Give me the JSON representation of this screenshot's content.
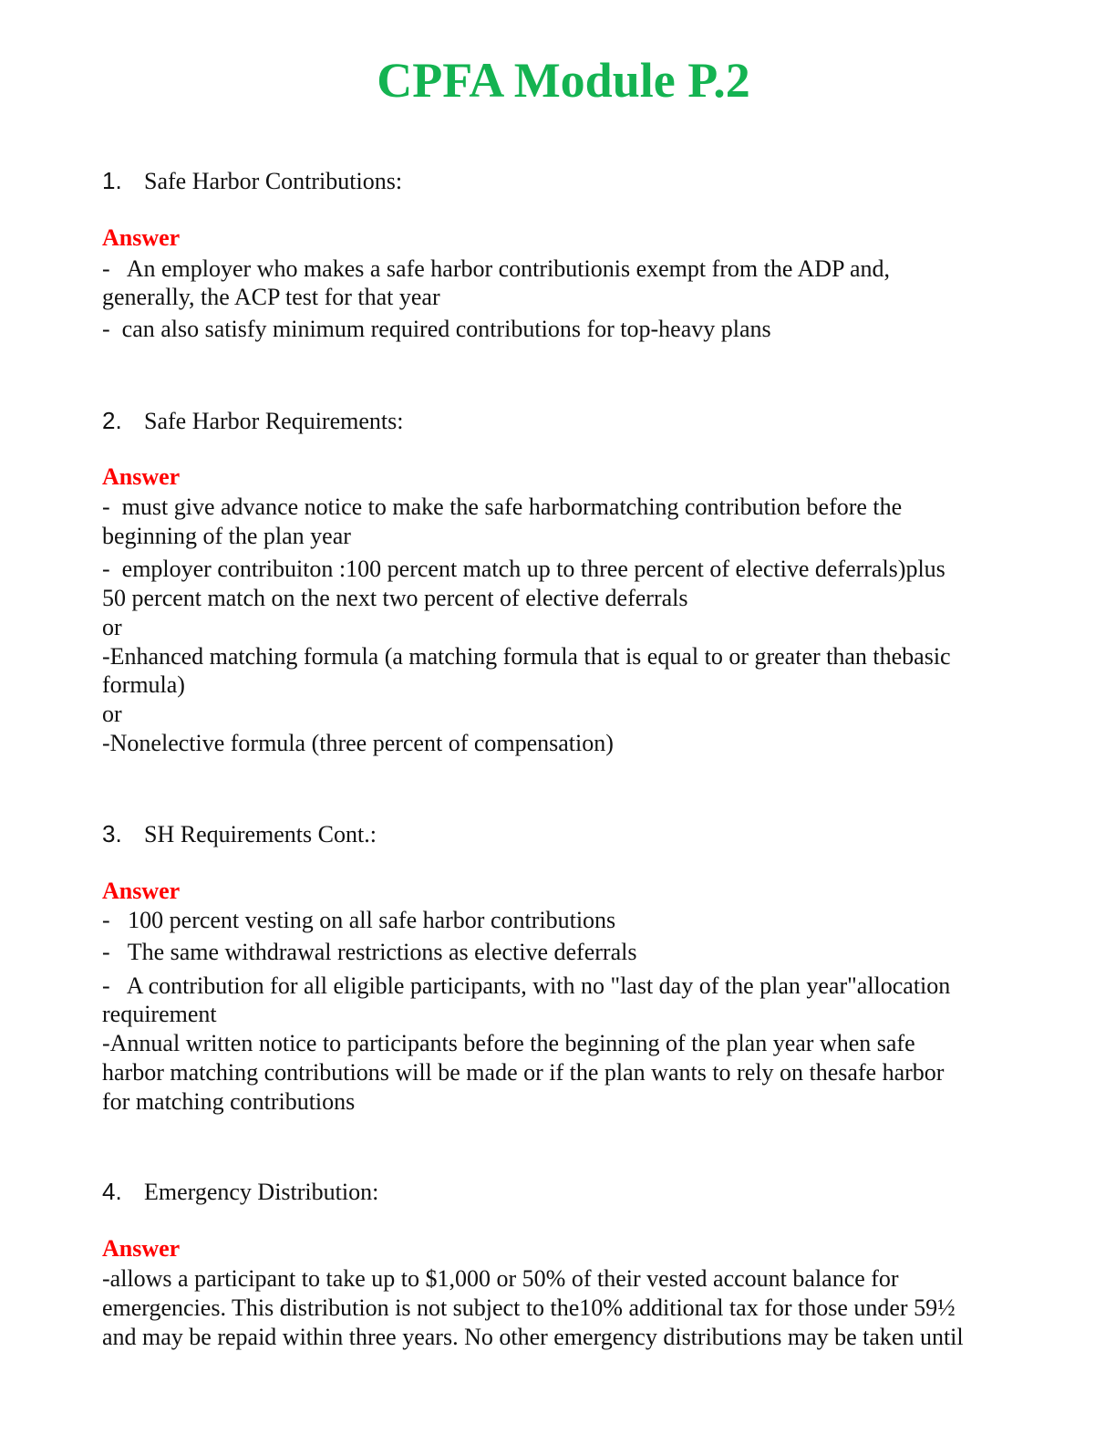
{
  "title": "CPFA Module P.2",
  "answer_label": "Answer",
  "items": [
    {
      "number": "1.",
      "question": "Safe Harbor Contributions:",
      "answer_lines": [
        "-   An employer who makes a safe harbor contributionis exempt from the ADP and,",
        "generally, the ACP test for that year",
        "-  can also satisfy minimum required contributions for top-heavy plans"
      ]
    },
    {
      "number": "2.",
      "question": "Safe Harbor Requirements:",
      "answer_lines": [
        "-  must give advance notice to make the safe harbormatching contribution before the",
        "beginning of the plan year",
        "-  employer contribuiton :100 percent match up to three percent of elective deferrals)plus",
        "50 percent match on the next two percent of elective deferrals",
        "or",
        "-Enhanced matching formula (a matching formula that is equal to or greater than thebasic",
        "formula)",
        "or",
        "-Nonelective formula (three percent of compensation)"
      ]
    },
    {
      "number": "3.",
      "question": "SH Requirements Cont.:",
      "answer_lines": [
        "-   100 percent vesting on all safe harbor contributions",
        "-   The same withdrawal restrictions as elective deferrals",
        "-   A contribution for all eligible participants, with no \"last day of the plan year\"allocation",
        "requirement",
        "-Annual written notice to participants before the beginning of the plan year when safe",
        "harbor matching contributions will be made or if the plan wants to rely on thesafe harbor",
        "for matching contributions"
      ]
    },
    {
      "number": "4.",
      "question": "Emergency Distribution:",
      "answer_lines": [
        "-allows a participant to take up to $1,000 or 50% of their vested account balance for",
        "emergencies. This distribution is not subject to the10% additional tax for those under 59½",
        "and may be repaid within three years. No other emergency distributions may be taken until"
      ]
    }
  ]
}
